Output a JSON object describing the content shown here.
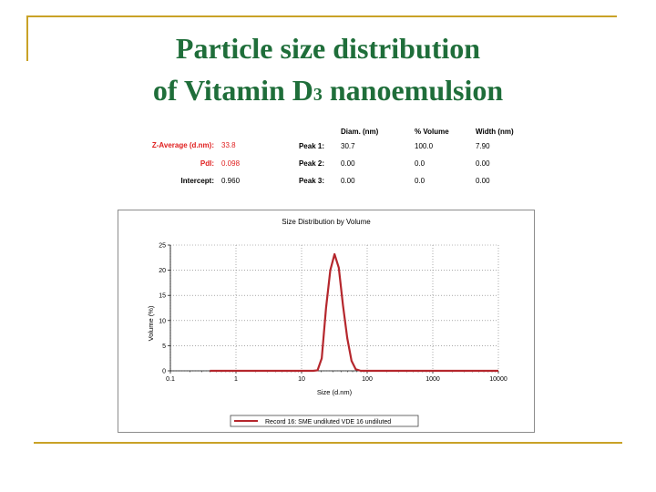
{
  "slide": {
    "title_line1": "Particle size distribution",
    "title_line2_prefix": "of Vitamin D",
    "title_line2_sub": "3",
    "title_line2_suffix": " nanoemulsion"
  },
  "results": {
    "z_average_label": "Z-Average (d.nm):",
    "z_average_value": "33.8",
    "pdi_label": "PdI:",
    "pdi_value": "0.098",
    "intercept_label": "Intercept:",
    "intercept_value": "0.960",
    "columns": [
      "Diam. (nm)",
      "% Volume",
      "Width (nm)"
    ],
    "peaks": [
      {
        "label": "Peak 1:",
        "diam": "30.7",
        "volume": "100.0",
        "width": "7.90"
      },
      {
        "label": "Peak 2:",
        "diam": "0.00",
        "volume": "0.0",
        "width": "0.00"
      },
      {
        "label": "Peak 3:",
        "diam": "0.00",
        "volume": "0.0",
        "width": "0.00"
      }
    ]
  },
  "chart_data": {
    "type": "line",
    "title": "Size Distribution by Volume",
    "xlabel": "Size (d.nm)",
    "ylabel": "Volume (%)",
    "x_scale": "log",
    "xlim": [
      0.1,
      10000
    ],
    "ylim": [
      0,
      25
    ],
    "x_ticks": [
      "0.1",
      "1",
      "10",
      "100",
      "1000",
      "10000"
    ],
    "y_ticks": [
      "0",
      "5",
      "10",
      "15",
      "20",
      "25"
    ],
    "grid": true,
    "legend_position": "bottom-center",
    "series": [
      {
        "name": "Record 16: SME undiluted VDE 16 undiluted",
        "color": "#b5272d",
        "x": [
          0.4,
          1,
          5,
          15,
          17.5,
          20.3,
          23.6,
          27.4,
          31.8,
          36.9,
          42.8,
          49.7,
          57.7,
          67,
          80,
          100,
          1000,
          10000
        ],
        "y": [
          0,
          0,
          0,
          0,
          0.1,
          2.5,
          12.5,
          20.0,
          23.2,
          20.5,
          13.0,
          6.5,
          2.0,
          0.3,
          0,
          0,
          0,
          0
        ]
      }
    ]
  }
}
